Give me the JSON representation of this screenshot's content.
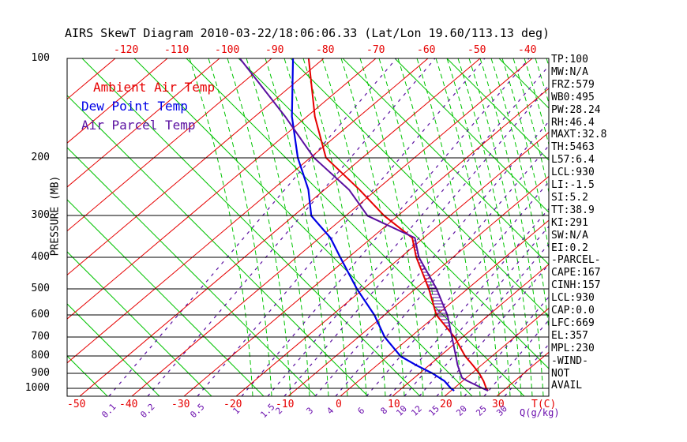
{
  "title": "AIRS SkewT Diagram 2010-03-22/18:06:06.33 (Lat/Lon 19.60/113.13 deg)",
  "legend": {
    "ambient": "Ambient Air Temp",
    "dew": "Dew Point Temp",
    "parcel": "Air Parcel Temp"
  },
  "axes": {
    "pressure_title": "PRESSURE (MB)",
    "pressure_labels": [
      100,
      200,
      300,
      400,
      500,
      600,
      700,
      800,
      900,
      1000
    ],
    "temp_unit": "T(C)",
    "mixing_unit": "Q(g/kg)",
    "top_temp_labels": [
      {
        "v": -120,
        "x": 160
      },
      {
        "v": -110,
        "x": 224
      },
      {
        "v": -100,
        "x": 288
      },
      {
        "v": -90,
        "x": 352
      },
      {
        "v": -80,
        "x": 416
      },
      {
        "v": -70,
        "x": 480
      },
      {
        "v": -60,
        "x": 544
      },
      {
        "v": -50,
        "x": 608
      },
      {
        "v": -40,
        "x": 672
      }
    ],
    "bottom_temp_labels": [
      {
        "v": -50,
        "x": 101
      },
      {
        "v": -40,
        "x": 167
      },
      {
        "v": -30,
        "x": 233
      },
      {
        "v": -20,
        "x": 299
      },
      {
        "v": -10,
        "x": 365
      },
      {
        "v": 0,
        "x": 431
      },
      {
        "v": 10,
        "x": 497
      },
      {
        "v": 20,
        "x": 563
      },
      {
        "v": 30,
        "x": 629
      }
    ],
    "mixing_labels": [
      {
        "v": "0.1",
        "x": 138
      },
      {
        "v": "0.2",
        "x": 187
      },
      {
        "v": "0.5",
        "x": 250
      },
      {
        "v": "1",
        "x": 306
      },
      {
        "v": "1.5",
        "x": 339
      },
      {
        "v": "2",
        "x": 360
      },
      {
        "v": "3",
        "x": 399
      },
      {
        "v": "4",
        "x": 425
      },
      {
        "v": "6",
        "x": 464
      },
      {
        "v": "8",
        "x": 493
      },
      {
        "v": "10",
        "x": 512
      },
      {
        "v": "12",
        "x": 531
      },
      {
        "v": "15",
        "x": 553
      },
      {
        "v": "20",
        "x": 588
      },
      {
        "v": "25",
        "x": 613
      },
      {
        "v": "30",
        "x": 639
      }
    ]
  },
  "stats": [
    "TP:100",
    "MW:N/A",
    "FRZ:579",
    "WB0:495",
    "PW:28.24",
    "RH:46.4",
    "MAXT:32.8",
    "TH:5463",
    "L57:6.4",
    "LCL:930",
    "LI:-1.5",
    "SI:5.2",
    "TT:38.9",
    "KI:291",
    "SW:N/A",
    "EI:0.2",
    "-PARCEL-",
    "CAPE:167",
    "CINH:157",
    "LCL:930",
    "CAP:0.0",
    "LFC:669",
    "EL:357",
    "MPL:230",
    "-WIND-",
    "NOT",
    "AVAIL"
  ],
  "colors": {
    "isotherm_red": "#e60000",
    "adiabat_green": "#00c300",
    "dew_blue": "#0000e6",
    "parcel_purple": "#5a0fa0",
    "grid_black": "#000000",
    "background": "#ffffff"
  },
  "chart_data": {
    "type": "line",
    "title": "AIRS SkewT Diagram 2010-03-22/18:06:06.33 (Lat/Lon 19.60/113.13 deg)",
    "xlabel": "Temperature (C)",
    "ylabel": "Pressure (MB)",
    "y_scale": "log-pressure",
    "y_range_mb": [
      100,
      1050
    ],
    "x_ticks_bottom_C": [
      -50,
      -40,
      -30,
      -20,
      -10,
      0,
      10,
      20,
      30
    ],
    "x_ticks_top_C": [
      -120,
      -110,
      -100,
      -90,
      -80,
      -70,
      -60,
      -50,
      -40
    ],
    "isotherms_C": {
      "start": -130,
      "end": 40,
      "step": 10
    },
    "mixing_ratio_g_kg": [
      0.1,
      0.2,
      0.5,
      1,
      1.5,
      2,
      3,
      4,
      6,
      8,
      10,
      12,
      15,
      20,
      25,
      30
    ],
    "cape_hatch_pressure_range_mb": [
      357,
      669
    ],
    "series": [
      {
        "name": "Ambient Air Temp",
        "color": "#e60000",
        "points_p_t": [
          [
            100,
            -82.9
          ],
          [
            150,
            -68.5
          ],
          [
            200,
            -57.0
          ],
          [
            250,
            -43.3
          ],
          [
            300,
            -32.6
          ],
          [
            350,
            -22.2
          ],
          [
            400,
            -17.1
          ],
          [
            500,
            -7.4
          ],
          [
            600,
            0.0
          ],
          [
            700,
            8.5
          ],
          [
            800,
            14.9
          ],
          [
            850,
            18.3
          ],
          [
            900,
            21.4
          ],
          [
            950,
            24.0
          ],
          [
            1000,
            26.2
          ],
          [
            1017,
            27.1
          ]
        ]
      },
      {
        "name": "Dew Point Temp",
        "color": "#0000e6",
        "points_p_t": [
          [
            100,
            -85.9
          ],
          [
            150,
            -72.9
          ],
          [
            200,
            -62.4
          ],
          [
            250,
            -53.1
          ],
          [
            300,
            -46.6
          ],
          [
            350,
            -37.9
          ],
          [
            400,
            -31.7
          ],
          [
            500,
            -21.2
          ],
          [
            600,
            -11.9
          ],
          [
            700,
            -4.9
          ],
          [
            800,
            2.5
          ],
          [
            850,
            7.4
          ],
          [
            900,
            12.4
          ],
          [
            950,
            16.5
          ],
          [
            1000,
            19.4
          ],
          [
            1017,
            20.6
          ]
        ]
      },
      {
        "name": "Air Parcel Temp",
        "color": "#5a0fa0",
        "points_p_t": [
          [
            100,
            -96.1
          ],
          [
            150,
            -74.2
          ],
          [
            200,
            -59.3
          ],
          [
            250,
            -45.3
          ],
          [
            300,
            -35.8
          ],
          [
            350,
            -21.7
          ],
          [
            400,
            -16.6
          ],
          [
            500,
            -5.9
          ],
          [
            600,
            2.1
          ],
          [
            700,
            8.0
          ],
          [
            800,
            13.1
          ],
          [
            850,
            15.4
          ],
          [
            900,
            17.8
          ],
          [
            930,
            19.2
          ],
          [
            950,
            20.9
          ],
          [
            1000,
            25.5
          ],
          [
            1017,
            27.1
          ]
        ]
      }
    ]
  }
}
